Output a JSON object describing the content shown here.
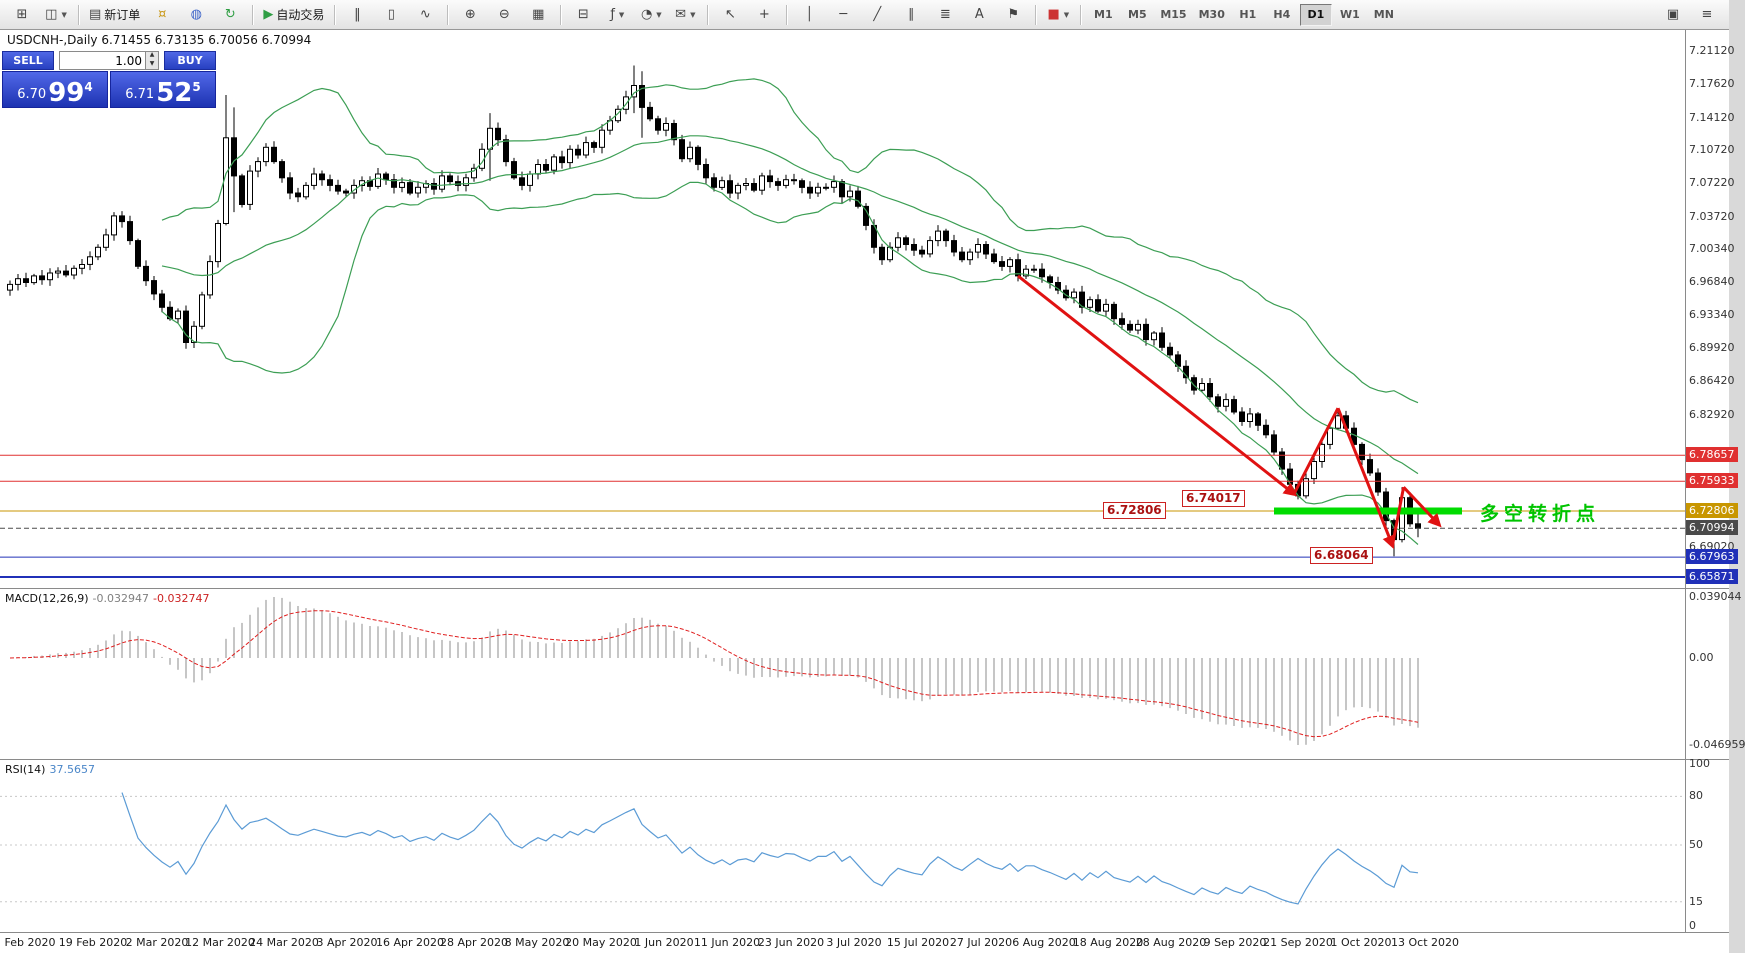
{
  "toolbar": {
    "groups": [
      [
        {
          "n": "new-chart",
          "g": "⊞"
        },
        {
          "n": "profiles",
          "g": "◫",
          "arrow": true
        }
      ],
      [
        {
          "n": "new-order",
          "g": "▤",
          "t": "新订单"
        },
        {
          "n": "wallet",
          "g": "¤",
          "c": "#c9991a"
        },
        {
          "n": "community",
          "g": "◍",
          "c": "#3a62c8"
        },
        {
          "n": "sync",
          "g": "↻",
          "c": "#2f9e44"
        }
      ],
      [
        {
          "n": "autotrading",
          "g": "▶",
          "t": "自动交易",
          "c": "#2f9e44"
        }
      ],
      [
        {
          "n": "bar-chart",
          "g": "‖"
        },
        {
          "n": "candle-chart",
          "g": "▯"
        },
        {
          "n": "line-chart",
          "g": "∿"
        }
      ],
      [
        {
          "n": "zoom-in",
          "g": "⊕"
        },
        {
          "n": "zoom-out",
          "g": "⊖"
        },
        {
          "n": "tile-windows",
          "g": "▦"
        }
      ],
      [
        {
          "n": "chart-shift",
          "g": "⊟"
        },
        {
          "n": "indicators",
          "g": "ƒ",
          "arrow": true
        },
        {
          "n": "periods",
          "g": "◔",
          "arrow": true
        },
        {
          "n": "templates",
          "g": "✉",
          "arrow": true
        }
      ],
      [
        {
          "n": "cursor",
          "g": "↖"
        },
        {
          "n": "crosshair",
          "g": "+"
        }
      ],
      [
        {
          "n": "vertical-line",
          "g": "│"
        },
        {
          "n": "horizontal-line",
          "g": "─"
        },
        {
          "n": "trendline",
          "g": "╱"
        },
        {
          "n": "equidistant-channel",
          "g": "∥"
        },
        {
          "n": "fibonacci",
          "g": "≣"
        },
        {
          "n": "text-label",
          "g": "A"
        },
        {
          "n": "arrow-objects",
          "g": "⚑"
        }
      ],
      [
        {
          "n": "colors",
          "g": "■",
          "c": "#cc3333",
          "arrow": true
        }
      ]
    ],
    "timeframes": [
      "M1",
      "M5",
      "M15",
      "M30",
      "H1",
      "H4",
      "D1",
      "W1",
      "MN"
    ],
    "active_timeframe": "D1",
    "right_buttons": [
      {
        "n": "fullscreen",
        "g": "▣"
      },
      {
        "n": "windows-menu",
        "g": "≡"
      }
    ]
  },
  "chart": {
    "title": "USDCNH-,Daily  6.71455 6.73135 6.70056 6.70994"
  },
  "one_click": {
    "sell_label": "SELL",
    "buy_label": "BUY",
    "volume": "1.00",
    "sell": {
      "prefix": "6.70",
      "big": "99",
      "sup": "4"
    },
    "buy": {
      "prefix": "6.71",
      "big": "52",
      "sup": "5"
    }
  },
  "macd": {
    "name": "MACD(12,26,9)",
    "main_value": "-0.032947",
    "signal_value": "-0.032747",
    "scale": [
      "0.039044",
      "0.00",
      "-0.046959"
    ]
  },
  "rsi": {
    "name": "RSI(14)",
    "value": "37.5657",
    "scale": [
      "100",
      "80",
      "50",
      "15",
      "0"
    ],
    "levels": [
      80,
      50,
      15
    ]
  },
  "chart_data": {
    "type": "candlestick",
    "symbol": "USDCNH-",
    "timeframe": "Daily",
    "last_bar": {
      "open": 6.71455,
      "high": 6.73135,
      "low": 6.70056,
      "close": 6.70994
    },
    "ylim": [
      6.65871,
      7.2112
    ],
    "first_open": 6.96,
    "closes": [
      6.966,
      6.972,
      6.968,
      6.975,
      6.971,
      6.978,
      6.98,
      6.976,
      6.983,
      6.987,
      6.995,
      7.005,
      7.018,
      7.038,
      7.032,
      7.012,
      6.985,
      6.97,
      6.956,
      6.942,
      6.93,
      6.938,
      6.905,
      6.922,
      6.955,
      6.99,
      7.03,
      7.12,
      7.08,
      7.05,
      7.085,
      7.095,
      7.11,
      7.095,
      7.078,
      7.062,
      7.058,
      7.07,
      7.082,
      7.076,
      7.07,
      7.064,
      7.062,
      7.07,
      7.075,
      7.069,
      7.082,
      7.076,
      7.068,
      7.073,
      7.062,
      7.068,
      7.072,
      7.066,
      7.08,
      7.074,
      7.07,
      7.078,
      7.088,
      7.108,
      7.13,
      7.118,
      7.095,
      7.078,
      7.07,
      7.082,
      7.092,
      7.086,
      7.1,
      7.094,
      7.108,
      7.102,
      7.115,
      7.11,
      7.128,
      7.138,
      7.15,
      7.163,
      7.175,
      7.152,
      7.14,
      7.128,
      7.135,
      7.118,
      7.098,
      7.11,
      7.092,
      7.078,
      7.068,
      7.075,
      7.062,
      7.07,
      7.072,
      7.065,
      7.08,
      7.074,
      7.07,
      7.076,
      7.075,
      7.068,
      7.062,
      7.068,
      7.068,
      7.074,
      7.058,
      7.064,
      7.048,
      7.028,
      7.005,
      6.992,
      7.005,
      7.015,
      7.008,
      7.002,
      6.998,
      7.012,
      7.022,
      7.012,
      7.0,
      6.992,
      7.0,
      7.008,
      6.998,
      6.99,
      6.985,
      6.992,
      6.975,
      6.982,
      6.982,
      6.974,
      6.968,
      6.96,
      6.952,
      6.958,
      6.942,
      6.95,
      6.938,
      6.945,
      6.93,
      6.924,
      6.918,
      6.924,
      6.908,
      6.915,
      6.9,
      6.892,
      6.88,
      6.868,
      6.855,
      6.862,
      6.848,
      6.838,
      6.845,
      6.832,
      6.822,
      6.83,
      6.818,
      6.808,
      6.79,
      6.772,
      6.756,
      6.744,
      6.762,
      6.78,
      6.798,
      6.815,
      6.828,
      6.815,
      6.798,
      6.782,
      6.768,
      6.748,
      6.718,
      6.698,
      6.742,
      6.7146,
      6.7099
    ],
    "wick_overrides": {
      "27": [
        7.165,
        7.028
      ],
      "28": [
        7.152,
        7.042
      ],
      "60": [
        7.146,
        7.075
      ],
      "78": [
        7.196,
        7.146
      ],
      "79": [
        7.19,
        7.12
      ],
      "161": [
        6.76,
        6.7402
      ],
      "173": [
        6.72,
        6.6806
      ],
      "174": [
        6.753,
        6.695
      ],
      "176": [
        6.73135,
        6.70056
      ]
    },
    "y_ticks": [
      "7.21120",
      "7.17620",
      "7.14120",
      "7.10720",
      "7.07220",
      "7.03720",
      "7.00340",
      "6.96840",
      "6.93340",
      "6.89920",
      "6.86420",
      "6.82920",
      "6.69020"
    ],
    "levels": [
      {
        "price": 6.78657,
        "label": "6.78657",
        "color": "#e03030",
        "style": "solid",
        "width": 1,
        "role": "resistance-upper"
      },
      {
        "price": 6.75933,
        "label": "6.75933",
        "color": "#e03030",
        "style": "solid",
        "width": 1,
        "role": "resistance-lower"
      },
      {
        "price": 6.72806,
        "label": "6.72806",
        "color": "#c89600",
        "style": "solid",
        "width": 1,
        "role": "pivot"
      },
      {
        "price": 6.70994,
        "label": "6.70994",
        "color": "#4a4a4a",
        "style": "dashed",
        "width": 1,
        "role": "bid"
      },
      {
        "price": 6.67963,
        "label": "6.67963",
        "color": "#2030b8",
        "style": "solid",
        "width": 1,
        "role": "support-upper"
      },
      {
        "price": 6.65871,
        "label": "6.65871",
        "color": "#2030b8",
        "style": "solid",
        "width": 2,
        "role": "support-lower"
      }
    ],
    "x_labels": [
      "Feb 2020",
      "19 Feb 2020",
      "2 Mar 2020",
      "12 Mar 2020",
      "24 Mar 2020",
      "3 Apr 2020",
      "16 Apr 2020",
      "28 Apr 2020",
      "8 May 2020",
      "20 May 2020",
      "1 Jun 2020",
      "11 Jun 2020",
      "23 Jun 2020",
      "3 Jul 2020",
      "15 Jul 2020",
      "27 Jul 2020",
      "6 Aug 2020",
      "18 Aug 2020",
      "28 Aug 2020",
      "9 Sep 2020",
      "21 Sep 2020",
      "1 Oct 2020",
      "13 Oct 2020"
    ],
    "bollinger": {
      "period": 20,
      "deviation": 2,
      "color": "#3c9e54"
    },
    "macd_params": {
      "fast": 12,
      "slow": 26,
      "signal": 9,
      "hist_color": "#c6c6c6",
      "signal_color": "#e02020"
    },
    "rsi_params": {
      "period": 14,
      "color": "#5b9bd5"
    },
    "annotations": {
      "arrow_color": "#e01212",
      "trend_arrows": [
        {
          "x1": 126,
          "p1": 6.975,
          "x2": 160.5,
          "p2": 6.746,
          "head": true
        },
        {
          "x1": 160.5,
          "p1": 6.746,
          "x2": 166,
          "p2": 6.836,
          "head": false
        },
        {
          "x1": 166,
          "p1": 6.836,
          "x2": 172.8,
          "p2": 6.692,
          "head": true
        },
        {
          "x1": 172.8,
          "p1": 6.692,
          "x2": 174.2,
          "p2": 6.753,
          "head": false
        },
        {
          "x1": 174.2,
          "p1": 6.753,
          "x2": 178.6,
          "p2": 6.714,
          "head": true
        }
      ],
      "support_zone": {
        "x1": 158,
        "x2": 181.5,
        "price": 6.728,
        "color": "#00dc00",
        "label": "多空转折点",
        "label_color": "#00c400"
      },
      "price_boxes": [
        {
          "text": "6.72806",
          "price": 6.72806,
          "left": 1103
        },
        {
          "text": "6.74017",
          "price": 6.74017,
          "left": 1182
        },
        {
          "text": "6.68064",
          "price": 6.68064,
          "left": 1310
        }
      ]
    }
  }
}
